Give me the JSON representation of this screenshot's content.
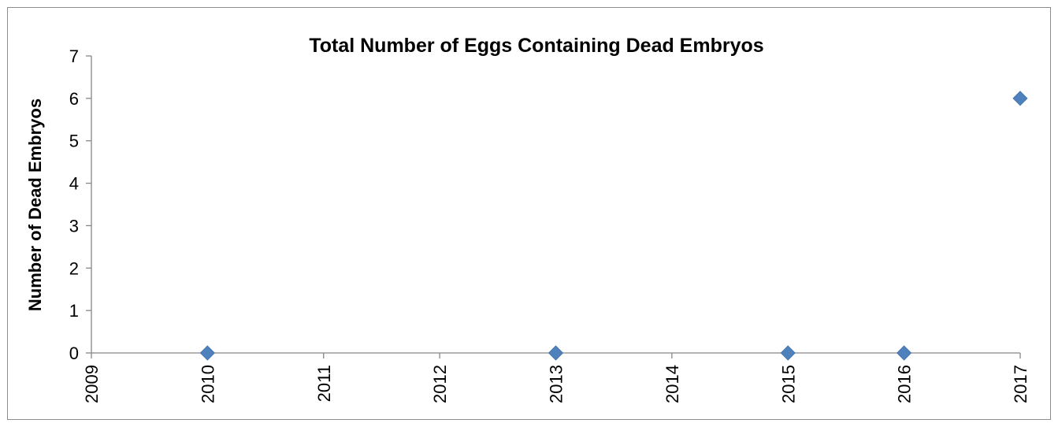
{
  "chart_data": {
    "type": "scatter",
    "title": "Total Number of Eggs Containing Dead Embryos",
    "xlabel": "",
    "ylabel": "Number of Dead Embryos",
    "xlim": [
      2009,
      2017
    ],
    "ylim": [
      0,
      7
    ],
    "x_ticks": [
      "2009",
      "2010",
      "2011",
      "2012",
      "2013",
      "2014",
      "2015",
      "2016",
      "2017"
    ],
    "y_ticks": [
      "0",
      "1",
      "2",
      "3",
      "4",
      "5",
      "6",
      "7"
    ],
    "grid": false,
    "legend": "none",
    "marker": "diamond",
    "series": [
      {
        "x": [
          2010,
          2013,
          2015,
          2016,
          2017
        ],
        "y": [
          0,
          0,
          0,
          0,
          6
        ],
        "color": "#4f81bd"
      }
    ]
  }
}
